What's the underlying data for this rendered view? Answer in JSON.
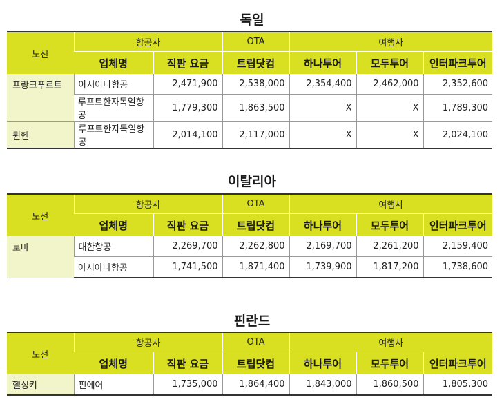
{
  "headers": {
    "route": "노선",
    "group_airline": "항공사",
    "group_ota": "OTA",
    "group_agency": "여행사",
    "company": "업체명",
    "direct_fare": "직판 요금",
    "tripdotcom": "트립닷컴",
    "hanatour": "하나투어",
    "modetour": "모두투어",
    "interparktour": "인터파크투어"
  },
  "sections": [
    {
      "title": "독일",
      "routes": [
        {
          "name": "프랑크푸르트",
          "rows": [
            {
              "airline": "아시아나항공",
              "direct": "2,471,900",
              "trip": "2,538,000",
              "hana": "2,354,400",
              "mode": "2,462,000",
              "interpark": "2,352,600"
            },
            {
              "airline": "루프트한자독일항공",
              "direct": "1,779,300",
              "trip": "1,863,500",
              "hana": "X",
              "mode": "X",
              "interpark": "1,789,300"
            }
          ]
        },
        {
          "name": "뮌헨",
          "rows": [
            {
              "airline": "루프트한자독일항공",
              "direct": "2,014,100",
              "trip": "2,117,000",
              "hana": "X",
              "mode": "X",
              "interpark": "2,024,100"
            }
          ]
        }
      ]
    },
    {
      "title": "이탈리아",
      "routes": [
        {
          "name": "로마",
          "rows": [
            {
              "airline": "대한항공",
              "direct": "2,269,700",
              "trip": "2,262,800",
              "hana": "2,169,700",
              "mode": "2,261,200",
              "interpark": "2,159,400"
            },
            {
              "airline": "아시아나항공",
              "direct": "1,741,500",
              "trip": "1,871,400",
              "hana": "1,739,900",
              "mode": "1,817,200",
              "interpark": "1,738,600"
            }
          ]
        }
      ]
    },
    {
      "title": "핀란드",
      "routes": [
        {
          "name": "헬싱키",
          "rows": [
            {
              "airline": "핀에어",
              "direct": "1,735,000",
              "trip": "1,864,400",
              "hana": "1,843,000",
              "mode": "1,860,500",
              "interpark": "1,805,300"
            }
          ]
        }
      ]
    }
  ]
}
